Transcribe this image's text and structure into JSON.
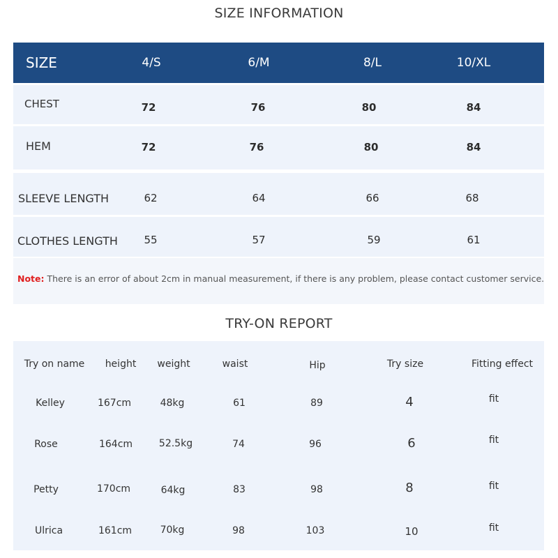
{
  "size_information": {
    "title": "SIZE INFORMATION",
    "header": [
      "SIZE",
      "4/S",
      "6/M",
      "8/L",
      "10/XL"
    ],
    "rows": [
      {
        "label": "CHEST",
        "values": [
          "72",
          "76",
          "80",
          "84"
        ]
      },
      {
        "label": "HEM",
        "values": [
          "72",
          "76",
          "80",
          "84"
        ]
      },
      {
        "label": "SLEEVE LENGTH",
        "values": [
          "62",
          "64",
          "66",
          "68"
        ]
      },
      {
        "label": "CLOTHES LENGTH",
        "values": [
          "55",
          "57",
          "59",
          "61"
        ]
      }
    ],
    "note": {
      "label": "Note:",
      "text": "There is an error of about 2cm in manual measurement, if there is any problem, please contact customer service."
    }
  },
  "tryon_report": {
    "title": "TRY-ON REPORT",
    "columns": [
      "Try on name",
      "height",
      "weight",
      "waist",
      "Hip",
      "Try size",
      "Fitting effect"
    ],
    "rows": [
      {
        "name": "Kelley",
        "height": "167cm",
        "weight": "48kg",
        "waist": "61",
        "hip": "89",
        "size": "4",
        "fit": "fit"
      },
      {
        "name": "Rose",
        "height": "164cm",
        "weight": "52.5kg",
        "waist": "74",
        "hip": "96",
        "size": "6",
        "fit": "fit"
      },
      {
        "name": "Petty",
        "height": "170cm",
        "weight": "64kg",
        "waist": "83",
        "hip": "98",
        "size": "8",
        "fit": "fit"
      },
      {
        "name": "Ulrica",
        "height": "161cm",
        "weight": "70kg",
        "waist": "98",
        "hip": "103",
        "size": "10",
        "fit": "fit"
      }
    ]
  },
  "colors": {
    "header_bg": "#1e4b83",
    "row_bg": "#eef3fb",
    "note_label": "#e02020"
  }
}
